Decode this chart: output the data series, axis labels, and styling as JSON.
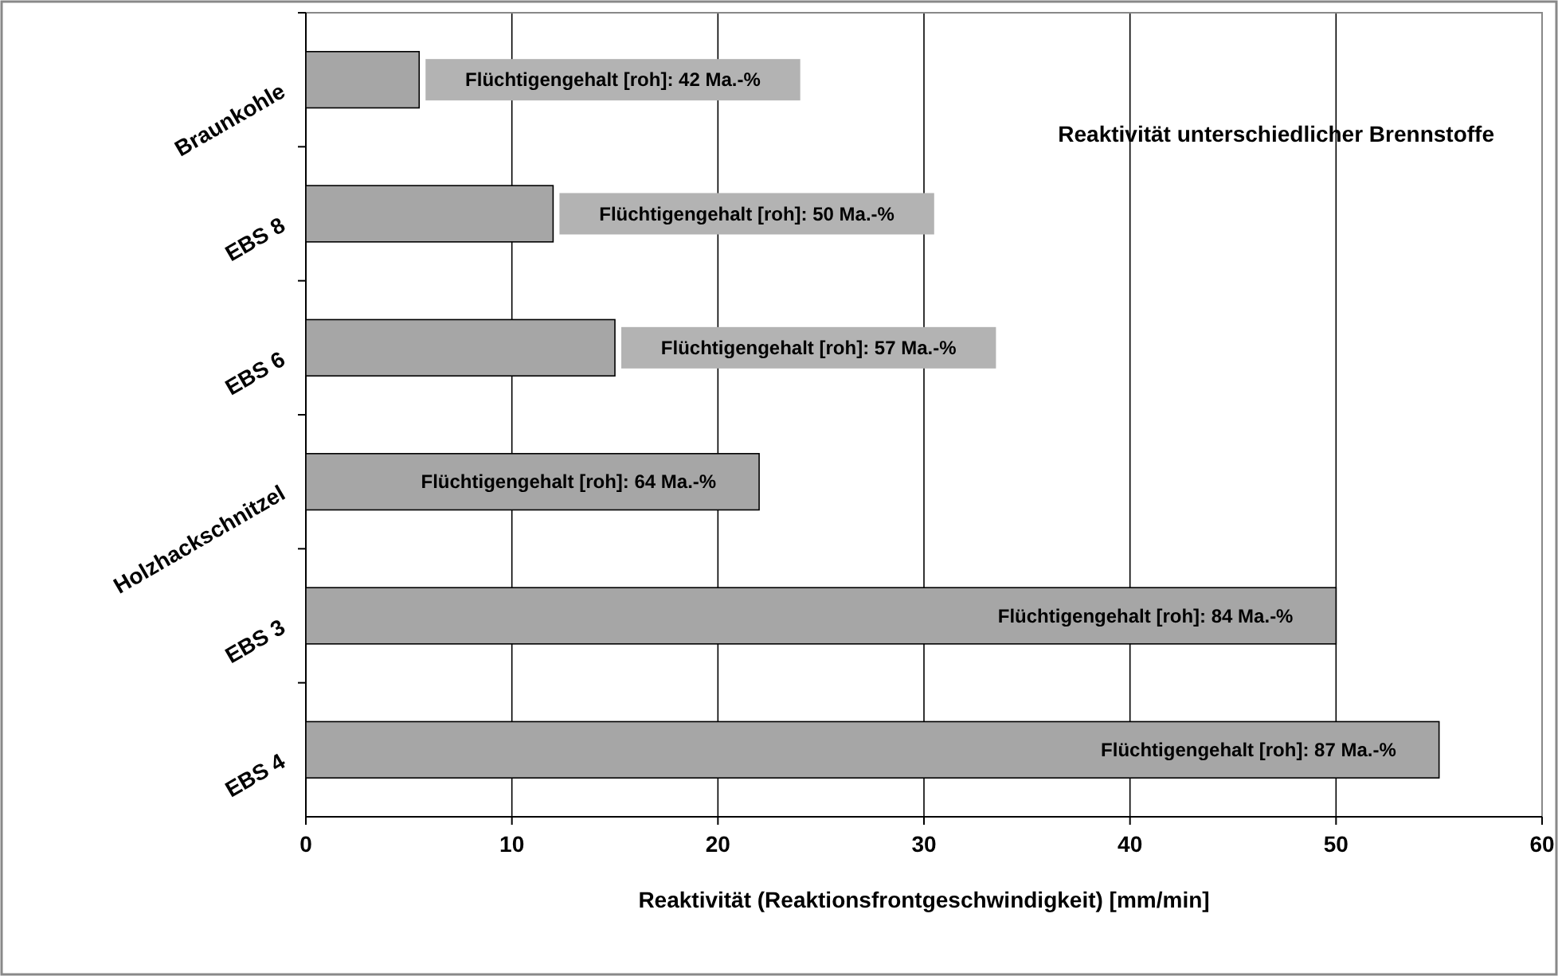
{
  "chart_data": {
    "type": "bar",
    "orientation": "horizontal",
    "title": "Reaktivität unterschiedlicher Brennstoffe",
    "xlabel": "Reaktivität (Reaktionsfrontgeschwindigkeit) [mm/min]",
    "categories": [
      "Braunkohle",
      "EBS 8",
      "EBS 6",
      "Holzhackschnitzel",
      "EBS 3",
      "EBS 4"
    ],
    "values": [
      5.5,
      12,
      15,
      22,
      50,
      55
    ],
    "color": "#a6a6a6",
    "xlim": [
      0,
      60
    ],
    "xticks": [
      0,
      10,
      20,
      30,
      40,
      50,
      60
    ],
    "grid": "x",
    "annotations": [
      {
        "text": "Flüchtigengehalt [roh]: 42 Ma.-%",
        "x": 5.5,
        "y": "Braunkohle"
      },
      {
        "text": "Flüchtigengehalt [roh]: 50 Ma.-%",
        "x": 12,
        "y": "EBS 8"
      },
      {
        "text": "Flüchtigengehalt [roh]: 57 Ma.-%",
        "x": 15,
        "y": "EBS 6"
      },
      {
        "text": "Flüchtigengehalt [roh]: 64 Ma.-%",
        "x": 22,
        "y": "Holzhackschnitzel"
      },
      {
        "text": "Flüchtigengehalt [roh]: 84 Ma.-%",
        "x": 50,
        "y": "EBS 3"
      },
      {
        "text": "Flüchtigengehalt [roh]: 87 Ma.-%",
        "x": 55,
        "y": "EBS 4"
      }
    ]
  }
}
